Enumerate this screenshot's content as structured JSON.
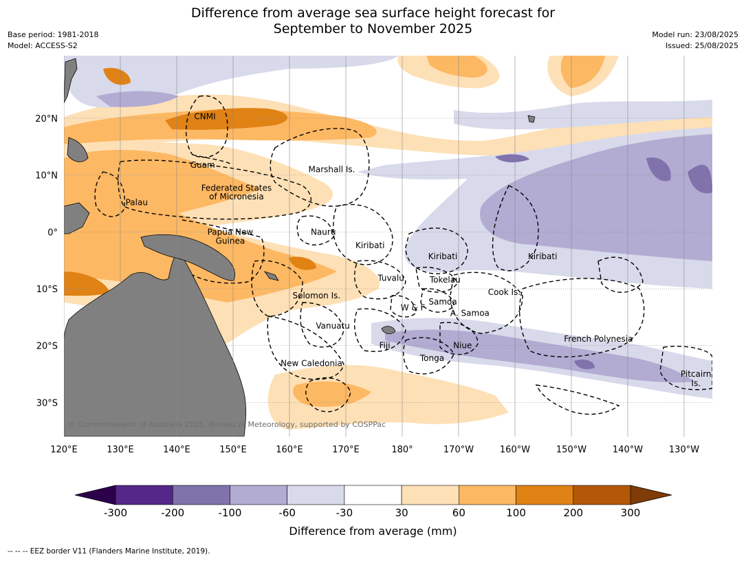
{
  "title_line1": "Difference from average sea surface height forecast for",
  "title_line2": "September to November 2025",
  "meta_left": [
    "Base period: 1981-2018",
    "Model: ACCESS-S2"
  ],
  "meta_right": [
    "Model run: 23/08/2025",
    "Issued: 25/08/2025"
  ],
  "map": {
    "lon_range": [
      120,
      235
    ],
    "lat_range": [
      -36,
      31
    ],
    "lon_labels": [
      {
        "lon": 120,
        "text": "120°E"
      },
      {
        "lon": 130,
        "text": "130°E"
      },
      {
        "lon": 140,
        "text": "140°E"
      },
      {
        "lon": 150,
        "text": "150°E"
      },
      {
        "lon": 160,
        "text": "160°E"
      },
      {
        "lon": 170,
        "text": "170°E"
      },
      {
        "lon": 180,
        "text": "180°"
      },
      {
        "lon": 190,
        "text": "170°W"
      },
      {
        "lon": 200,
        "text": "160°W"
      },
      {
        "lon": 210,
        "text": "150°W"
      },
      {
        "lon": 220,
        "text": "140°W"
      },
      {
        "lon": 230,
        "text": "130°W"
      }
    ],
    "lat_labels": [
      {
        "lat": 20,
        "text": "20°N"
      },
      {
        "lat": 10,
        "text": "10°N"
      },
      {
        "lat": 0,
        "text": "0°"
      },
      {
        "lat": -10,
        "text": "10°S"
      },
      {
        "lat": -20,
        "text": "20°S"
      },
      {
        "lat": -30,
        "text": "30°S"
      }
    ],
    "place_labels": [
      {
        "text": "CNMI",
        "lon": 145.0,
        "lat": 20.3
      },
      {
        "text": "Guam",
        "lon": 144.6,
        "lat": 11.8
      },
      {
        "text": "Marshall Is.",
        "lon": 167.5,
        "lat": 11.0
      },
      {
        "text": "Federated States",
        "lon": 150.6,
        "lat": 7.7
      },
      {
        "text": "of Micronesia",
        "lon": 150.6,
        "lat": 6.2
      },
      {
        "text": "Palau",
        "lon": 132.9,
        "lat": 5.2
      },
      {
        "text": "Papua New",
        "lon": 149.5,
        "lat": 0.0
      },
      {
        "text": "Guinea",
        "lon": 149.5,
        "lat": -1.6
      },
      {
        "text": "Nauru",
        "lon": 166.0,
        "lat": 0.0
      },
      {
        "text": "Kiribati",
        "lon": 174.3,
        "lat": -2.4
      },
      {
        "text": "Kiribati",
        "lon": 187.2,
        "lat": -4.3
      },
      {
        "text": "Kiribati",
        "lon": 204.9,
        "lat": -4.3
      },
      {
        "text": "Tuvalu",
        "lon": 178.0,
        "lat": -8.1
      },
      {
        "text": "Tokelau",
        "lon": 187.6,
        "lat": -8.4
      },
      {
        "text": "Cook Is.",
        "lon": 198.1,
        "lat": -10.6
      },
      {
        "text": "Solomon Is.",
        "lon": 164.8,
        "lat": -11.2
      },
      {
        "text": "Samoa",
        "lon": 187.2,
        "lat": -12.3
      },
      {
        "text": "W & F",
        "lon": 181.9,
        "lat": -13.3
      },
      {
        "text": "A. Samoa",
        "lon": 192.0,
        "lat": -14.3
      },
      {
        "text": "Vanuatu",
        "lon": 167.7,
        "lat": -16.5
      },
      {
        "text": "French Polynesia",
        "lon": 214.8,
        "lat": -18.8
      },
      {
        "text": "Fiji",
        "lon": 176.9,
        "lat": -20.0
      },
      {
        "text": "Niue",
        "lon": 190.7,
        "lat": -20.0
      },
      {
        "text": "Tonga",
        "lon": 185.3,
        "lat": -22.2
      },
      {
        "text": "New Caledonia",
        "lon": 163.9,
        "lat": -23.1
      },
      {
        "text": "Pitcairn",
        "lon": 232.1,
        "lat": -25.0
      },
      {
        "text": "Is.",
        "lon": 232.1,
        "lat": -26.6
      }
    ],
    "copyright": "© Commonwealth of Australia 2025, Bureau of Meteorology, supported by COSPPac",
    "land_color": "#808080"
  },
  "colorbar": {
    "title": "Difference from average (mm)",
    "ticks": [
      "-300",
      "-200",
      "-100",
      "-60",
      "-30",
      "30",
      "60",
      "100",
      "200",
      "300"
    ],
    "under_color": "#2d004b",
    "over_color": "#7f3b08",
    "bins": [
      {
        "from": "-300",
        "to": "-200",
        "color": "#542788"
      },
      {
        "from": "-200",
        "to": "-100",
        "color": "#8073ac"
      },
      {
        "from": "-100",
        "to": "-60",
        "color": "#b2abd2"
      },
      {
        "from": "-60",
        "to": "-30",
        "color": "#d8daeb"
      },
      {
        "from": "-30",
        "to": "30",
        "color": "#ffffff"
      },
      {
        "from": "30",
        "to": "60",
        "color": "#fee0b6"
      },
      {
        "from": "60",
        "to": "100",
        "color": "#fdb863"
      },
      {
        "from": "100",
        "to": "200",
        "color": "#e08214"
      },
      {
        "from": "200",
        "to": "300",
        "color": "#b35806"
      }
    ]
  },
  "footnote": "--  --  -- EEZ border V11 (Flanders Marine Institute, 2019)."
}
